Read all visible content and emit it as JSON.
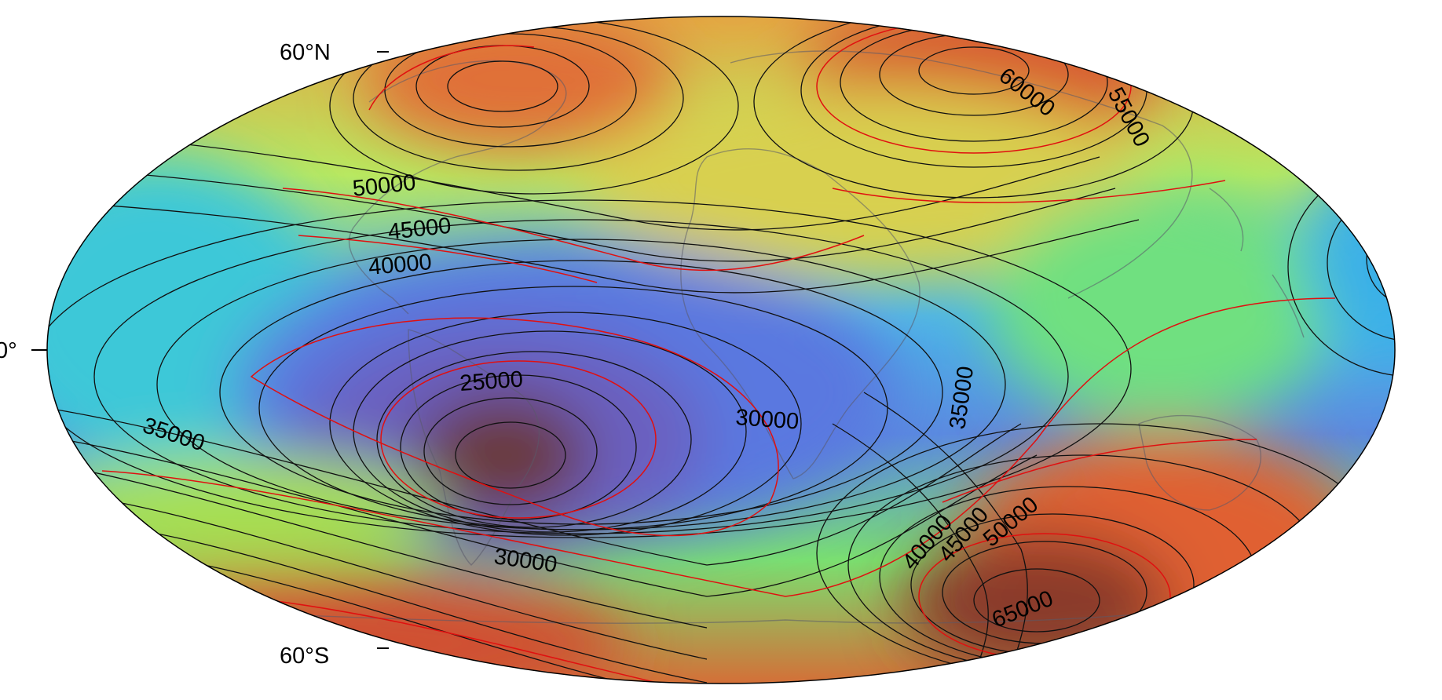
{
  "map": {
    "lat_labels": {
      "north": "60°N",
      "equator": "0°",
      "south": "60°S"
    },
    "colors": {
      "low": "#6a3b3b",
      "low_mid": "#5a6fd8",
      "mid": "#4ab5e8",
      "mid_high": "#8ee86a",
      "high": "#f0b040",
      "max": "#8a3a2a",
      "minor_contour": "#111111",
      "major_contour": "#e01010"
    },
    "contour_labels": [
      {
        "text": "60000",
        "value": 60000
      },
      {
        "text": "55000",
        "value": 55000
      },
      {
        "text": "50000",
        "value": 50000
      },
      {
        "text": "45000",
        "value": 45000
      },
      {
        "text": "40000",
        "value": 40000
      },
      {
        "text": "25000",
        "value": 25000
      },
      {
        "text": "30000",
        "value": 30000
      },
      {
        "text": "35000",
        "value": 35000
      },
      {
        "text": "35000",
        "value": 35000
      },
      {
        "text": "30000",
        "value": 30000
      },
      {
        "text": "40000",
        "value": 40000
      },
      {
        "text": "45000",
        "value": 45000
      },
      {
        "text": "50000",
        "value": 50000
      },
      {
        "text": "65000",
        "value": 65000
      }
    ]
  }
}
